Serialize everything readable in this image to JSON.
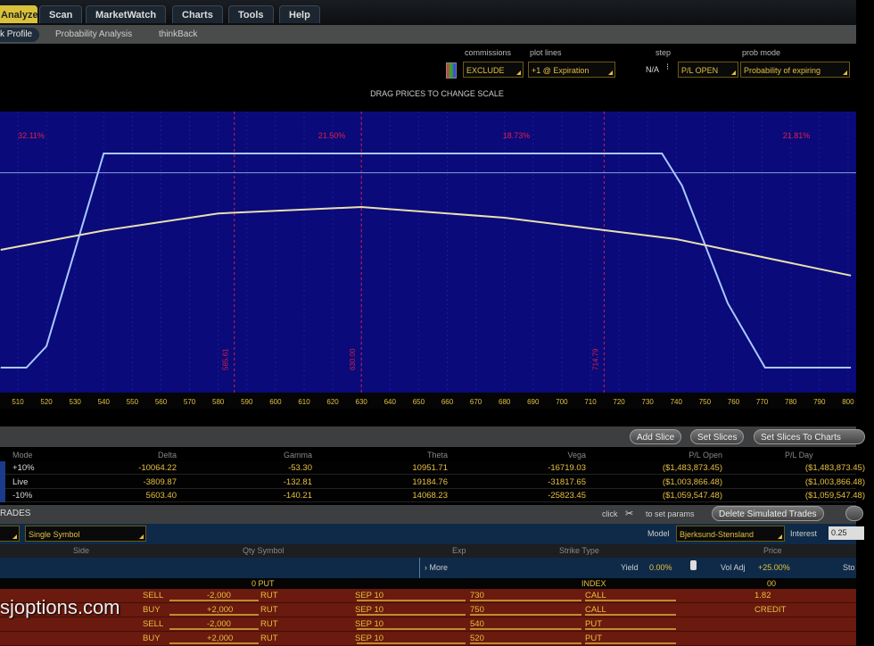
{
  "tabs": [
    "Analyze",
    "Scan",
    "MarketWatch",
    "Charts",
    "Tools",
    "Help"
  ],
  "subtabs": [
    "k Profile",
    "Probability Analysis",
    "thinkBack"
  ],
  "controls": {
    "commissions_label": "commissions",
    "commissions": "EXCLUDE",
    "plot_lines_label": "plot lines",
    "plot_lines": "+1 @ Expiration",
    "step_label": "step",
    "step": "N/A",
    "pl_mode": "P/L OPEN",
    "prob_mode_label": "prob mode",
    "prob_mode": "Probability of expiring"
  },
  "drag_hint": "DRAG PRICES TO CHANGE SCALE",
  "chart_data": {
    "type": "line",
    "x_ticks": [
      510,
      520,
      530,
      540,
      550,
      560,
      570,
      580,
      590,
      600,
      610,
      620,
      630,
      640,
      650,
      660,
      670,
      680,
      690,
      700,
      710,
      720,
      730,
      740,
      750,
      760,
      770,
      780,
      790,
      800
    ],
    "xlim": [
      504,
      801
    ],
    "probability_labels": [
      "32.11%",
      "21.50%",
      "18.73%",
      "21.81%"
    ],
    "marker_lines": [
      {
        "x": 585.61,
        "label": "585.61"
      },
      {
        "x": 630.0,
        "label": "630.00"
      },
      {
        "x": 714.79,
        "label": "714.79"
      }
    ],
    "series": [
      {
        "color": "#a8c8ff",
        "points": [
          [
            504,
            0
          ],
          [
            513,
            0
          ],
          [
            520,
            0.1
          ],
          [
            540,
            1
          ],
          [
            735,
            1
          ],
          [
            742,
            0.85
          ],
          [
            758,
            0.3
          ],
          [
            771,
            0
          ],
          [
            801,
            0
          ]
        ]
      },
      {
        "color": "#e8e0b0",
        "points": [
          [
            504,
            0.55
          ],
          [
            540,
            0.64
          ],
          [
            580,
            0.72
          ],
          [
            630,
            0.75
          ],
          [
            680,
            0.7
          ],
          [
            740,
            0.6
          ],
          [
            801,
            0.43
          ]
        ]
      }
    ],
    "zero_line": 0.91
  },
  "slice_buttons": [
    "Add Slice",
    "Set Slices",
    "Set Slices To Charts"
  ],
  "greeks": {
    "headers": [
      "Mode",
      "Delta",
      "Gamma",
      "Theta",
      "Vega",
      "P/L Open",
      "P/L Day"
    ],
    "rows": [
      [
        "+10%",
        "-10064.22",
        "-53.30",
        "10951.71",
        "-16719.03",
        "($1,483,873.45)",
        "($1,483,873.45)"
      ],
      [
        "Live",
        "-3809.87",
        "-132.81",
        "19184.76",
        "-31817.65",
        "($1,003,866.48)",
        "($1,003,866.48)"
      ],
      [
        "-10%",
        "5603.40",
        "-140.21",
        "14068.23",
        "-25823.45",
        "($1,059,547.48)",
        "($1,059,547.48)"
      ]
    ]
  },
  "trades": {
    "title": "RADES",
    "hint_pre": "click",
    "hint_post": "to set params",
    "delete_button": "Delete Simulated Trades",
    "symbol_mode": "Single Symbol",
    "model_label": "Model",
    "model": "Bjerksund-Stensland",
    "interest_label": "Interest",
    "interest": "0.25",
    "columns": [
      "Side",
      "Qty Symbol",
      "Exp",
      "Strike Type",
      "Price"
    ],
    "more": "More",
    "yield_label": "Yield",
    "yield": "0.00%",
    "vol_adj_label": "Vol Adj",
    "vol_adj": "+25.00%",
    "sto": "Sto",
    "summary": {
      "put": "0 PUT",
      "type": "INDEX",
      "price": "00"
    },
    "rows": [
      {
        "side": "SELL",
        "qty": "-2,000",
        "sym": "RUT",
        "exp": "SEP 10",
        "strike": "730",
        "type": "CALL",
        "price": "1.82"
      },
      {
        "side": "BUY",
        "qty": "+2,000",
        "sym": "RUT",
        "exp": "SEP 10",
        "strike": "750",
        "type": "CALL",
        "price": "CREDIT"
      },
      {
        "side": "SELL",
        "qty": "-2,000",
        "sym": "RUT",
        "exp": "SEP 10",
        "strike": "540",
        "type": "PUT",
        "price": ""
      },
      {
        "side": "BUY",
        "qty": "+2,000",
        "sym": "RUT",
        "exp": "SEP 10",
        "strike": "520",
        "type": "PUT",
        "price": ""
      }
    ]
  },
  "watermark": "sjoptions.com"
}
